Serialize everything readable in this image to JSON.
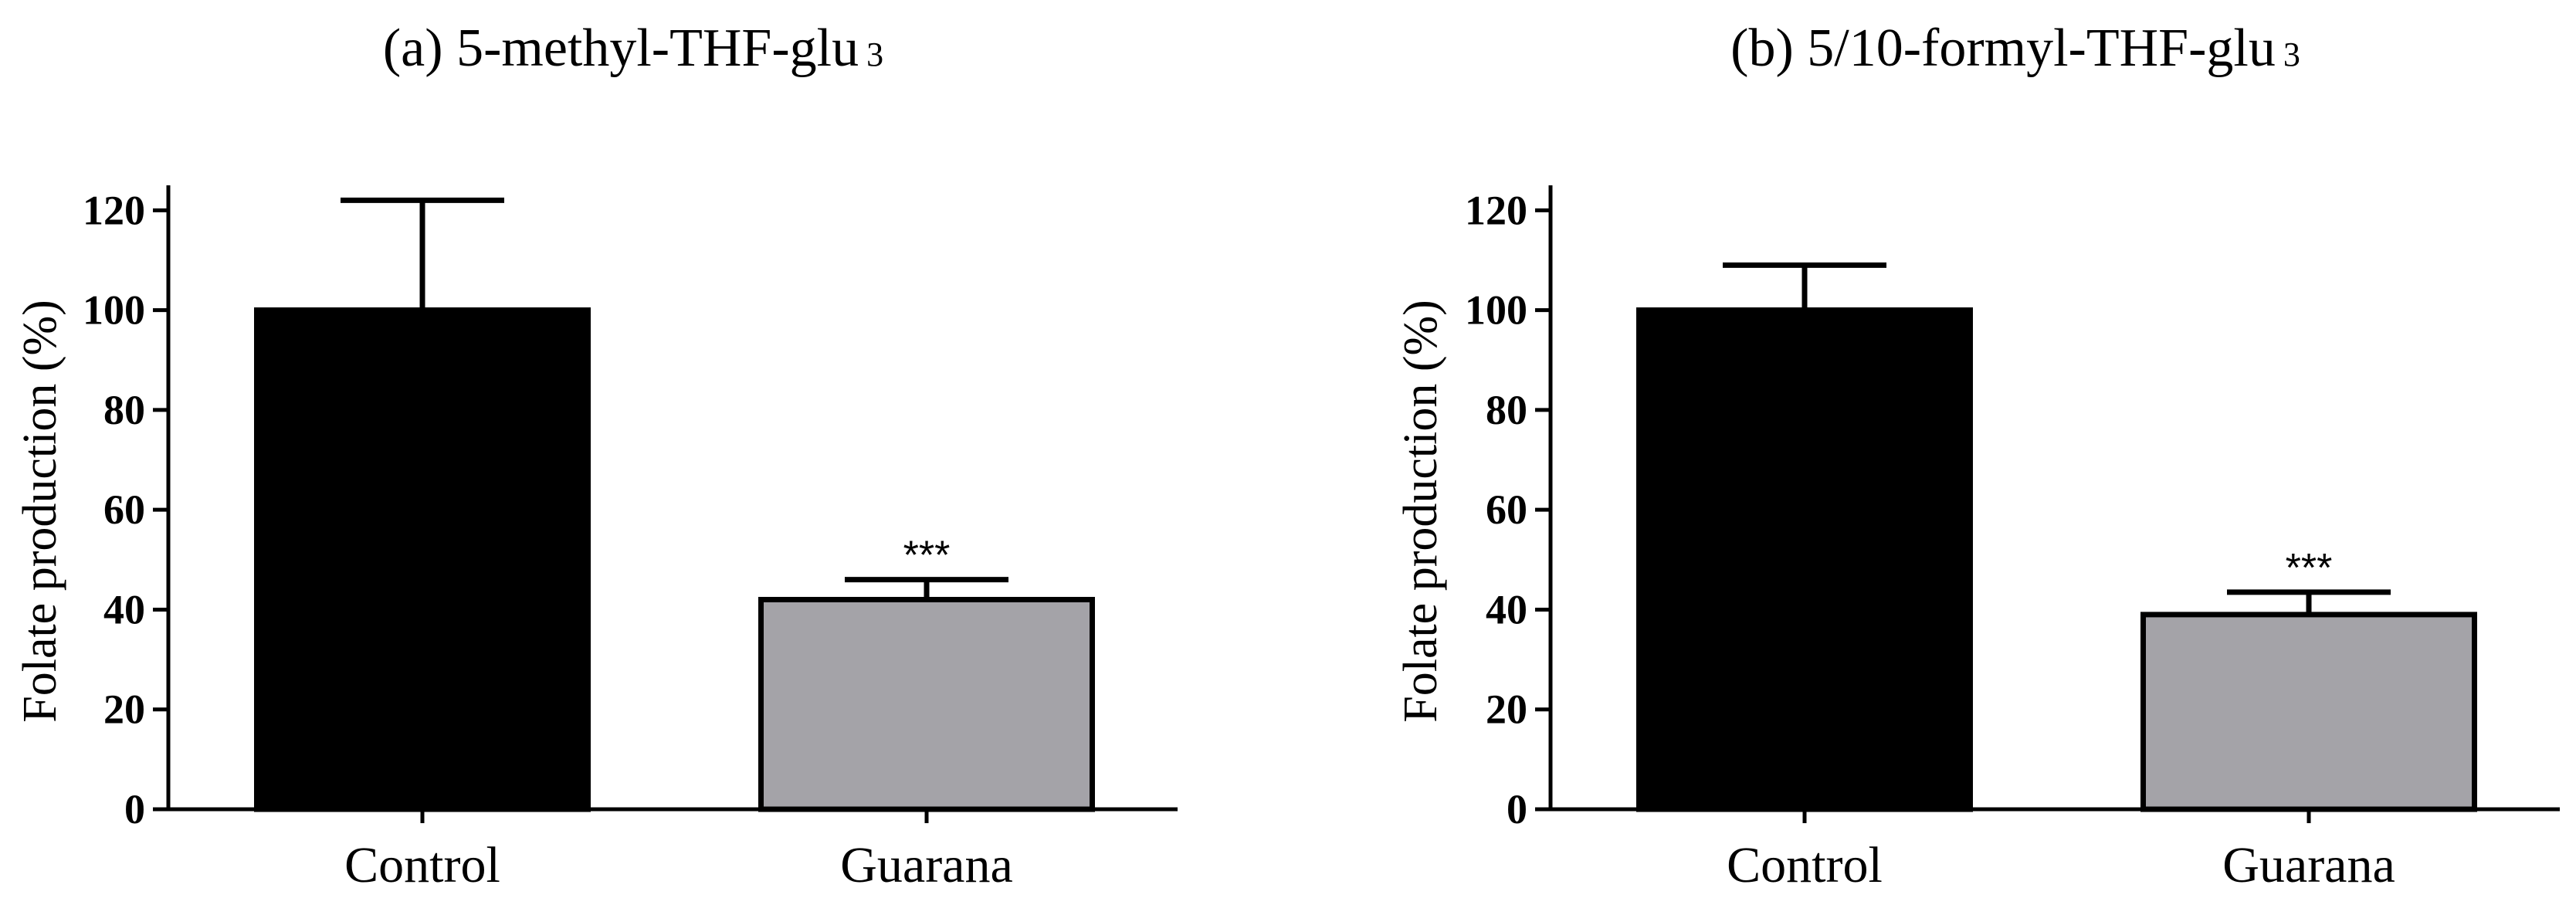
{
  "chart_data": [
    {
      "type": "bar",
      "title": "(a) 5-methyl-THF-glu",
      "title_subscript": "3",
      "ylabel": "Folate production (%)",
      "xlabel": "",
      "ylim": [
        0,
        125
      ],
      "yticks": [
        "0",
        "20",
        "40",
        "60",
        "80",
        "100",
        "120"
      ],
      "categories": [
        "Control",
        "Guarana"
      ],
      "values": [
        100,
        42
      ],
      "errors": [
        22,
        4
      ],
      "colors": [
        "#000000",
        "#a4a3a8"
      ],
      "annotations": [
        "",
        "***"
      ]
    },
    {
      "type": "bar",
      "title": "(b) 5/10-formyl-THF-glu",
      "title_subscript": "3",
      "ylabel": "Folate production (%)",
      "xlabel": "",
      "ylim": [
        0,
        125
      ],
      "yticks": [
        "0",
        "20",
        "40",
        "60",
        "80",
        "100",
        "120"
      ],
      "categories": [
        "Control",
        "Guarana"
      ],
      "values": [
        100,
        39
      ],
      "errors": [
        9,
        4.5
      ],
      "colors": [
        "#000000",
        "#a4a3a8"
      ],
      "annotations": [
        "",
        "***"
      ]
    }
  ]
}
